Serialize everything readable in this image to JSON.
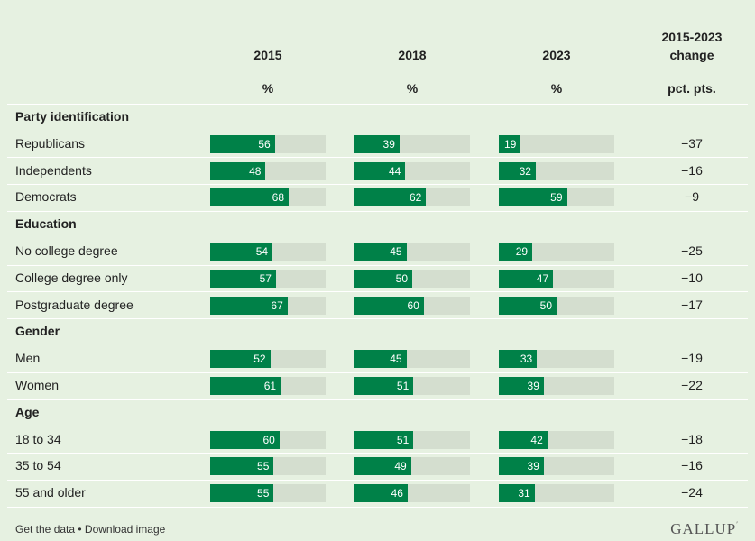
{
  "columns": {
    "years": [
      "2015",
      "2018",
      "2023"
    ],
    "unit": "%",
    "change_title_line1": "2015-2023",
    "change_title_line2": "change",
    "change_unit": "pct. pts."
  },
  "chart_data": {
    "type": "bar",
    "orientation": "horizontal",
    "value_unit": "%",
    "change_unit": "pct. pts.",
    "years": [
      "2015",
      "2018",
      "2023"
    ],
    "scale_max": 100,
    "groups": [
      {
        "name": "Party identification",
        "rows": [
          {
            "label": "Republicans",
            "values": [
              56,
              39,
              19
            ],
            "change": "−37"
          },
          {
            "label": "Independents",
            "values": [
              48,
              44,
              32
            ],
            "change": "−16"
          },
          {
            "label": "Democrats",
            "values": [
              68,
              62,
              59
            ],
            "change": "−9"
          }
        ]
      },
      {
        "name": "Education",
        "rows": [
          {
            "label": "No college degree",
            "values": [
              54,
              45,
              29
            ],
            "change": "−25"
          },
          {
            "label": "College degree only",
            "values": [
              57,
              50,
              47
            ],
            "change": "−10"
          },
          {
            "label": "Postgraduate degree",
            "values": [
              67,
              60,
              50
            ],
            "change": "−17"
          }
        ]
      },
      {
        "name": "Gender",
        "rows": [
          {
            "label": "Men",
            "values": [
              52,
              45,
              33
            ],
            "change": "−19"
          },
          {
            "label": "Women",
            "values": [
              61,
              51,
              39
            ],
            "change": "−22"
          }
        ]
      },
      {
        "name": "Age",
        "rows": [
          {
            "label": "18 to 34",
            "values": [
              60,
              51,
              42
            ],
            "change": "−18"
          },
          {
            "label": "35 to 54",
            "values": [
              55,
              49,
              39
            ],
            "change": "−16"
          },
          {
            "label": "55 and older",
            "values": [
              55,
              46,
              31
            ],
            "change": "−24"
          }
        ]
      }
    ]
  },
  "footer": {
    "get_data": "Get the data",
    "separator": " • ",
    "download": "Download image",
    "logo": "GALLUP"
  },
  "colors": {
    "background": "#e6f1e1",
    "bar": "#008148",
    "track": "#d4decf"
  }
}
